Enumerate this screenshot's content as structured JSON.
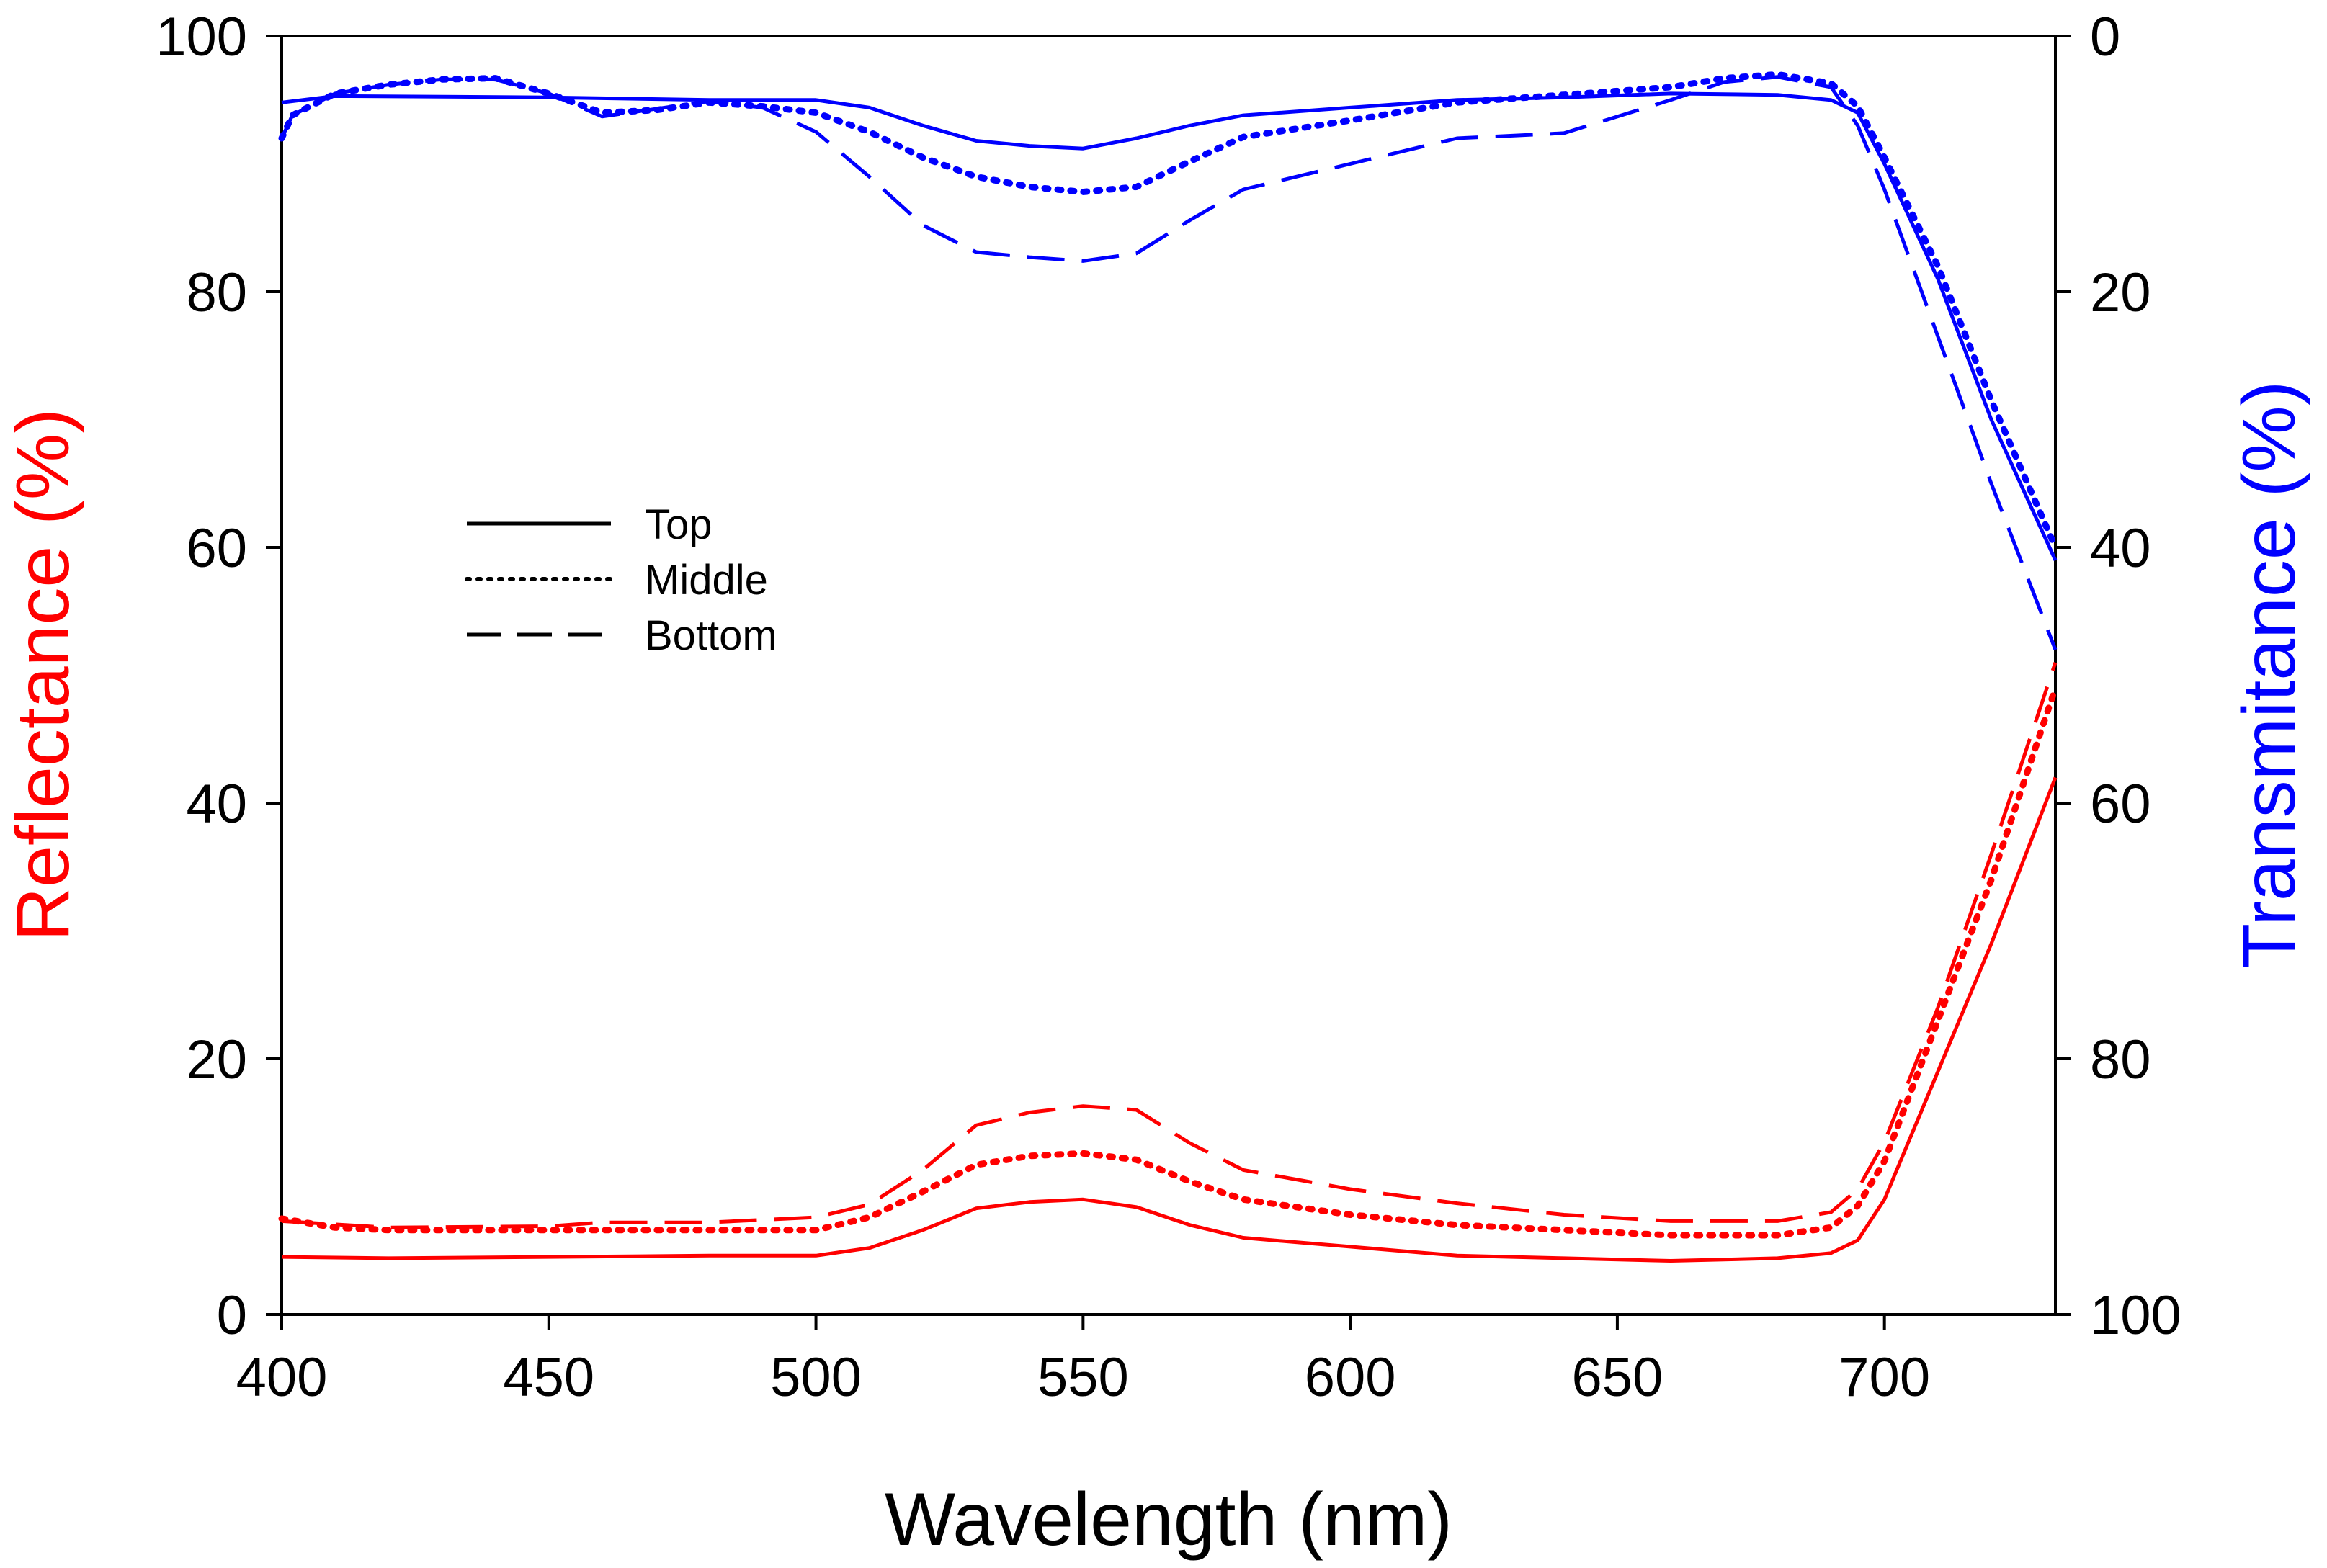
{
  "chart_data": {
    "type": "line",
    "xlabel": "Wavelength (nm)",
    "ylabel_left": "Reflectance (%)",
    "ylabel_right": "Transmitance (%)",
    "xlim": [
      400,
      732
    ],
    "ylim_left": [
      0,
      100
    ],
    "ylim_right": [
      100,
      0
    ],
    "right_axis_inverted": true,
    "xticks": [
      400,
      450,
      500,
      550,
      600,
      650,
      700
    ],
    "yticks_left": [
      0,
      20,
      40,
      60,
      80,
      100
    ],
    "yticks_right": [
      100,
      80,
      60,
      40,
      20,
      0
    ],
    "grid": false,
    "legend_position": "center-left",
    "legend": [
      {
        "name": "Top",
        "dash": "solid"
      },
      {
        "name": "Middle",
        "dash": "dotted"
      },
      {
        "name": "Bottom",
        "dash": "dashed"
      }
    ],
    "colors": {
      "reflectance": "#ff0000",
      "transmittance": "#0000ff",
      "axis": "#000000"
    },
    "series": [
      {
        "name": "Top",
        "quantity": "reflectance",
        "axis": "left",
        "dash": "solid",
        "x": [
          400,
          420,
          450,
          480,
          500,
          510,
          520,
          530,
          540,
          550,
          560,
          570,
          580,
          600,
          620,
          640,
          660,
          680,
          690,
          695,
          700,
          710,
          720,
          732
        ],
        "y": [
          4.5,
          4.4,
          4.5,
          4.6,
          4.6,
          5.2,
          6.6,
          8.3,
          8.8,
          9.0,
          8.4,
          7.0,
          6.0,
          5.3,
          4.6,
          4.4,
          4.2,
          4.4,
          4.8,
          5.8,
          9.0,
          19.0,
          29.0,
          42.0
        ]
      },
      {
        "name": "Middle",
        "quantity": "reflectance",
        "axis": "left",
        "dash": "dotted",
        "x": [
          400,
          410,
          420,
          450,
          480,
          500,
          510,
          520,
          530,
          540,
          550,
          560,
          570,
          580,
          600,
          620,
          640,
          660,
          680,
          690,
          695,
          700,
          710,
          720,
          732
        ],
        "y": [
          7.5,
          6.8,
          6.6,
          6.6,
          6.6,
          6.6,
          7.6,
          9.6,
          11.7,
          12.4,
          12.6,
          12.1,
          10.4,
          9.0,
          7.8,
          7.0,
          6.6,
          6.2,
          6.2,
          6.8,
          8.5,
          12.0,
          23.0,
          34.0,
          49.0
        ]
      },
      {
        "name": "Bottom",
        "quantity": "reflectance",
        "axis": "left",
        "dash": "dashed",
        "x": [
          400,
          420,
          450,
          460,
          480,
          500,
          510,
          520,
          530,
          540,
          550,
          560,
          570,
          580,
          600,
          620,
          640,
          660,
          680,
          690,
          695,
          700,
          710,
          720,
          732
        ],
        "y": [
          7.3,
          6.8,
          6.9,
          7.2,
          7.2,
          7.6,
          8.6,
          11.3,
          14.8,
          15.8,
          16.3,
          16.0,
          13.4,
          11.3,
          9.8,
          8.7,
          7.8,
          7.3,
          7.3,
          8.0,
          9.8,
          13.5,
          24.0,
          36.0,
          51.0
        ]
      },
      {
        "name": "Top",
        "quantity": "transmittance",
        "axis": "right",
        "dash": "solid",
        "x": [
          400,
          410,
          450,
          480,
          500,
          510,
          520,
          530,
          540,
          550,
          560,
          570,
          580,
          600,
          620,
          640,
          660,
          680,
          690,
          695,
          700,
          710,
          720,
          732
        ],
        "y": [
          5.2,
          4.7,
          4.8,
          5.0,
          5.0,
          5.6,
          7.0,
          8.2,
          8.6,
          8.8,
          8.0,
          7.0,
          6.2,
          5.6,
          5.0,
          4.8,
          4.5,
          4.6,
          5.0,
          6.0,
          10.0,
          19.0,
          30.0,
          41.0
        ]
      },
      {
        "name": "Middle",
        "quantity": "transmittance",
        "axis": "right",
        "dash": "dotted",
        "x": [
          400,
          402,
          410,
          420,
          430,
          440,
          450,
          460,
          470,
          480,
          490,
          500,
          510,
          520,
          530,
          540,
          550,
          560,
          570,
          580,
          600,
          620,
          640,
          660,
          670,
          680,
          690,
          695,
          700,
          710,
          720,
          732
        ],
        "y": [
          8.0,
          6.2,
          4.5,
          3.8,
          3.4,
          3.3,
          4.5,
          6.0,
          5.8,
          5.2,
          5.5,
          6.0,
          7.5,
          9.5,
          11.0,
          11.8,
          12.2,
          11.8,
          9.8,
          7.9,
          6.6,
          5.2,
          4.6,
          4.0,
          3.3,
          3.0,
          3.7,
          5.5,
          9.5,
          18.0,
          28.5,
          40.0
        ]
      },
      {
        "name": "Bottom",
        "quantity": "transmittance",
        "axis": "right",
        "dash": "dashed",
        "x": [
          400,
          402,
          410,
          420,
          430,
          440,
          450,
          460,
          470,
          480,
          490,
          500,
          510,
          520,
          530,
          540,
          550,
          560,
          570,
          580,
          600,
          620,
          640,
          660,
          670,
          680,
          690,
          695,
          700,
          710,
          720,
          732
        ],
        "y": [
          8.0,
          6.2,
          4.5,
          3.8,
          3.4,
          3.4,
          4.5,
          6.3,
          5.7,
          5.1,
          5.6,
          7.5,
          11.0,
          14.8,
          16.9,
          17.3,
          17.6,
          17.0,
          14.4,
          12.0,
          10.0,
          8.0,
          7.6,
          5.0,
          3.6,
          3.2,
          4.0,
          7.0,
          12.0,
          23.5,
          35.0,
          48.0
        ]
      }
    ]
  }
}
